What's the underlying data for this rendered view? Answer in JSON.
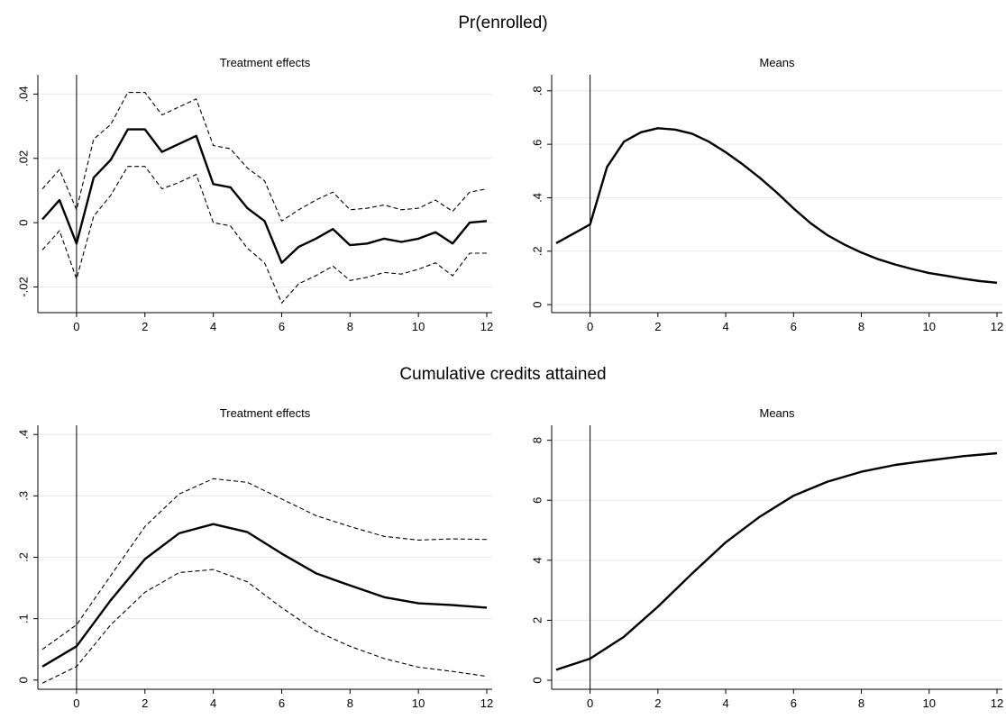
{
  "groups": [
    {
      "title": "Pr(enrolled)"
    },
    {
      "title": "Cumulative credits attained"
    }
  ],
  "chart_data": [
    {
      "type": "line",
      "group": "Pr(enrolled)",
      "title": "Treatment effects",
      "xlabel": "",
      "ylabel": "",
      "xlim": [
        -1,
        12
      ],
      "ylim": [
        -0.028,
        0.046
      ],
      "xticks": [
        0,
        2,
        4,
        6,
        8,
        10,
        12
      ],
      "xtick_labels": [
        "0",
        "2",
        "4",
        "6",
        "8",
        "10",
        "12"
      ],
      "yticks": [
        -0.02,
        0,
        0.02,
        0.04
      ],
      "ytick_labels": [
        "-.02",
        "0",
        ".02",
        ".04"
      ],
      "vline": 0,
      "grid": true,
      "x": [
        -1,
        -0.5,
        0,
        0.5,
        1,
        1.5,
        2,
        2.5,
        3,
        3.5,
        4,
        4.5,
        5,
        5.5,
        6,
        6.5,
        7,
        7.5,
        8,
        8.5,
        9,
        9.5,
        10,
        10.5,
        11,
        11.5,
        12
      ],
      "series": [
        {
          "role": "estimate",
          "values": [
            0.001,
            0.007,
            -0.0065,
            0.014,
            0.0195,
            0.029,
            0.029,
            0.022,
            0.0245,
            0.027,
            0.012,
            0.011,
            0.0045,
            0.0005,
            -0.0125,
            -0.0075,
            -0.005,
            -0.002,
            -0.007,
            -0.0065,
            -0.005,
            -0.006,
            -0.005,
            -0.003,
            -0.0065,
            0.0,
            0.0005
          ]
        },
        {
          "role": "upper",
          "values": [
            0.0105,
            0.0165,
            0.004,
            0.026,
            0.0305,
            0.0405,
            0.0405,
            0.0335,
            0.036,
            0.0385,
            0.024,
            0.023,
            0.017,
            0.013,
            0.0005,
            0.004,
            0.007,
            0.0095,
            0.004,
            0.0045,
            0.0055,
            0.004,
            0.0045,
            0.007,
            0.0035,
            0.0095,
            0.0105
          ]
        },
        {
          "role": "lower",
          "values": [
            -0.0085,
            -0.0025,
            -0.0175,
            0.002,
            0.0085,
            0.0175,
            0.0175,
            0.0105,
            0.0125,
            0.015,
            0.0,
            -0.001,
            -0.008,
            -0.0125,
            -0.025,
            -0.019,
            -0.0165,
            -0.0135,
            -0.018,
            -0.017,
            -0.0155,
            -0.016,
            -0.0145,
            -0.0125,
            -0.0165,
            -0.0095,
            -0.0095
          ]
        }
      ]
    },
    {
      "type": "line",
      "group": "Pr(enrolled)",
      "title": "Means",
      "xlabel": "",
      "ylabel": "",
      "xlim": [
        -1,
        12
      ],
      "ylim": [
        -0.03,
        0.86
      ],
      "xticks": [
        0,
        2,
        4,
        6,
        8,
        10,
        12
      ],
      "xtick_labels": [
        "0",
        "2",
        "4",
        "6",
        "8",
        "10",
        "12"
      ],
      "yticks": [
        0,
        0.2,
        0.4,
        0.6,
        0.8
      ],
      "ytick_labels": [
        "0",
        ".2",
        ".4",
        ".6",
        ".8"
      ],
      "vline": 0,
      "grid": true,
      "x": [
        -1,
        0,
        0.5,
        1,
        1.5,
        2,
        2.5,
        3,
        3.5,
        4,
        4.5,
        5,
        5.5,
        6,
        6.5,
        7,
        7.5,
        8,
        8.5,
        9,
        9.5,
        10,
        10.5,
        11,
        11.5,
        12
      ],
      "series": [
        {
          "role": "mean",
          "values": [
            0.23,
            0.3,
            0.515,
            0.61,
            0.645,
            0.66,
            0.655,
            0.64,
            0.61,
            0.57,
            0.525,
            0.475,
            0.42,
            0.36,
            0.305,
            0.26,
            0.225,
            0.195,
            0.17,
            0.15,
            0.133,
            0.118,
            0.108,
            0.097,
            0.088,
            0.082
          ]
        }
      ]
    },
    {
      "type": "line",
      "group": "Cumulative credits attained",
      "title": "Treatment effects",
      "xlabel": "",
      "ylabel": "",
      "xlim": [
        -1,
        12
      ],
      "ylim": [
        -0.015,
        0.415
      ],
      "xticks": [
        0,
        2,
        4,
        6,
        8,
        10,
        12
      ],
      "xtick_labels": [
        "0",
        "2",
        "4",
        "6",
        "8",
        "10",
        "12"
      ],
      "yticks": [
        0,
        0.1,
        0.2,
        0.3,
        0.4
      ],
      "ytick_labels": [
        "0",
        ".1",
        ".2",
        ".3",
        ".4"
      ],
      "vline": 0,
      "grid": true,
      "x": [
        -1,
        0,
        1,
        2,
        3,
        4,
        5,
        6,
        7,
        8,
        9,
        10,
        11,
        12
      ],
      "series": [
        {
          "role": "estimate",
          "values": [
            0.022,
            0.055,
            0.13,
            0.197,
            0.239,
            0.254,
            0.241,
            0.206,
            0.174,
            0.154,
            0.135,
            0.125,
            0.122,
            0.118
          ]
        },
        {
          "role": "upper",
          "values": [
            0.05,
            0.09,
            0.17,
            0.25,
            0.303,
            0.328,
            0.322,
            0.295,
            0.268,
            0.25,
            0.234,
            0.228,
            0.23,
            0.229
          ]
        },
        {
          "role": "lower",
          "values": [
            -0.005,
            0.022,
            0.09,
            0.143,
            0.175,
            0.18,
            0.16,
            0.118,
            0.08,
            0.055,
            0.035,
            0.021,
            0.014,
            0.006
          ]
        }
      ]
    },
    {
      "type": "line",
      "group": "Cumulative credits attained",
      "title": "Means",
      "xlabel": "",
      "ylabel": "",
      "xlim": [
        -1,
        12
      ],
      "ylim": [
        -0.3,
        8.5
      ],
      "xticks": [
        0,
        2,
        4,
        6,
        8,
        10,
        12
      ],
      "xtick_labels": [
        "0",
        "2",
        "4",
        "6",
        "8",
        "10",
        "12"
      ],
      "yticks": [
        0,
        2,
        4,
        6,
        8
      ],
      "ytick_labels": [
        "0",
        "2",
        "4",
        "6",
        "8"
      ],
      "vline": 0,
      "grid": true,
      "x": [
        -1,
        0,
        1,
        2,
        3,
        4,
        5,
        6,
        7,
        8,
        9,
        10,
        11,
        12
      ],
      "series": [
        {
          "role": "mean",
          "values": [
            0.35,
            0.72,
            1.45,
            2.45,
            3.55,
            4.6,
            5.45,
            6.15,
            6.62,
            6.95,
            7.18,
            7.33,
            7.47,
            7.57
          ]
        }
      ]
    }
  ]
}
